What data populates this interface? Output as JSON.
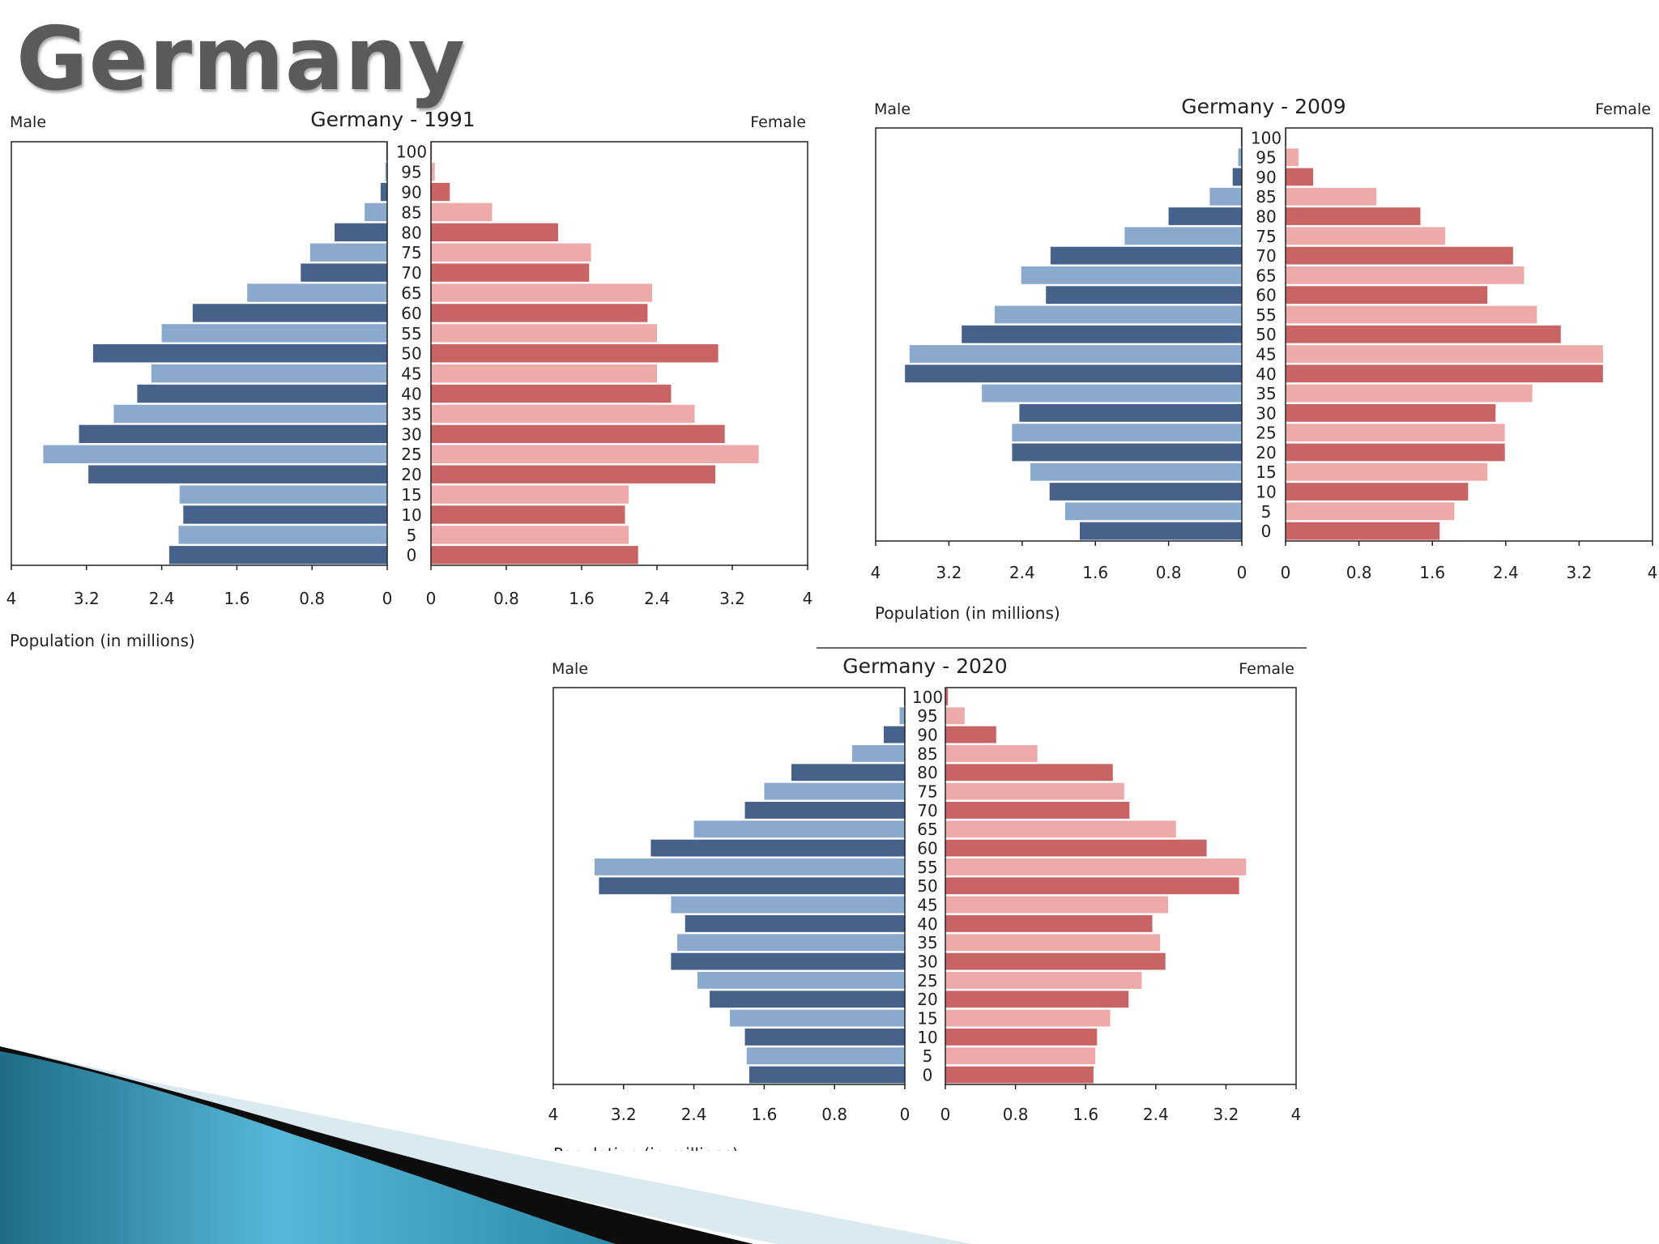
{
  "slide": {
    "title": "Germany"
  },
  "colors": {
    "male_dark": "#46618a",
    "male_light": "#8ba9cd",
    "female_dark": "#c96464",
    "female_light": "#eea9a9",
    "title_gray": "#5a5a5a"
  },
  "chart_data": [
    {
      "type": "bar",
      "title": "Germany - 1991",
      "left_label": "Male",
      "right_label": "Female",
      "xlabel": "Population (in millions)",
      "xlim": [
        0,
        4
      ],
      "xticks_left": [
        "4",
        "3.2",
        "2.4",
        "1.6",
        "0.8",
        "0"
      ],
      "xticks_right": [
        "0",
        "0.8",
        "1.6",
        "2.4",
        "3.2",
        "4"
      ],
      "categories": [
        "0",
        "5",
        "10",
        "15",
        "20",
        "25",
        "30",
        "35",
        "40",
        "45",
        "50",
        "55",
        "60",
        "65",
        "70",
        "75",
        "80",
        "85",
        "90",
        "95",
        "100"
      ],
      "series": [
        {
          "name": "Male",
          "values": [
            2.32,
            2.22,
            2.17,
            2.21,
            3.18,
            3.66,
            3.28,
            2.91,
            2.66,
            2.51,
            3.13,
            2.4,
            2.07,
            1.49,
            0.92,
            0.82,
            0.56,
            0.24,
            0.07,
            0.02,
            0.01
          ]
        },
        {
          "name": "Female",
          "values": [
            2.2,
            2.1,
            2.06,
            2.1,
            3.02,
            3.48,
            3.12,
            2.8,
            2.55,
            2.4,
            3.05,
            2.4,
            2.3,
            2.35,
            1.68,
            1.7,
            1.35,
            0.65,
            0.2,
            0.04,
            0.01
          ]
        }
      ]
    },
    {
      "type": "bar",
      "title": "Germany - 2009",
      "left_label": "Male",
      "right_label": "Female",
      "xlabel": "Population (in millions)",
      "xlim": [
        0,
        4
      ],
      "xticks_left": [
        "4",
        "3.2",
        "2.4",
        "1.6",
        "0.8",
        "0"
      ],
      "xticks_right": [
        "0",
        "0.8",
        "1.6",
        "2.4",
        "3.2",
        "4"
      ],
      "categories": [
        "0",
        "5",
        "10",
        "15",
        "20",
        "25",
        "30",
        "35",
        "40",
        "45",
        "50",
        "55",
        "60",
        "65",
        "70",
        "75",
        "80",
        "85",
        "90",
        "95",
        "100"
      ],
      "series": [
        {
          "name": "Male",
          "values": [
            1.77,
            1.93,
            2.1,
            2.31,
            2.51,
            2.51,
            2.43,
            2.84,
            3.68,
            3.63,
            3.06,
            2.7,
            2.14,
            2.41,
            2.09,
            1.28,
            0.8,
            0.35,
            0.1,
            0.04,
            0.01
          ]
        },
        {
          "name": "Female",
          "values": [
            1.68,
            1.84,
            1.99,
            2.2,
            2.39,
            2.39,
            2.29,
            2.69,
            3.46,
            3.46,
            3.0,
            2.74,
            2.2,
            2.6,
            2.48,
            1.74,
            1.47,
            0.99,
            0.3,
            0.14,
            0.01
          ]
        }
      ]
    },
    {
      "type": "bar",
      "title": "Germany - 2020",
      "left_label": "Male",
      "right_label": "Female",
      "xlabel": "Population (in millions)",
      "xlim": [
        0,
        4
      ],
      "xticks_left": [
        "4",
        "3.2",
        "2.4",
        "1.6",
        "0.8",
        "0"
      ],
      "xticks_right": [
        "0",
        "0.8",
        "1.6",
        "2.4",
        "3.2",
        "4"
      ],
      "categories": [
        "0",
        "5",
        "10",
        "15",
        "20",
        "25",
        "30",
        "35",
        "40",
        "45",
        "50",
        "55",
        "60",
        "65",
        "70",
        "75",
        "80",
        "85",
        "90",
        "95",
        "100"
      ],
      "series": [
        {
          "name": "Male",
          "values": [
            1.77,
            1.8,
            1.82,
            1.99,
            2.22,
            2.36,
            2.66,
            2.59,
            2.5,
            2.66,
            3.48,
            3.53,
            2.89,
            2.4,
            1.82,
            1.6,
            1.29,
            0.6,
            0.24,
            0.06,
            0.01
          ]
        },
        {
          "name": "Female",
          "values": [
            1.69,
            1.71,
            1.73,
            1.88,
            2.09,
            2.24,
            2.51,
            2.45,
            2.36,
            2.54,
            3.35,
            3.43,
            2.98,
            2.63,
            2.1,
            2.04,
            1.91,
            1.05,
            0.58,
            0.22,
            0.03
          ]
        }
      ]
    }
  ]
}
